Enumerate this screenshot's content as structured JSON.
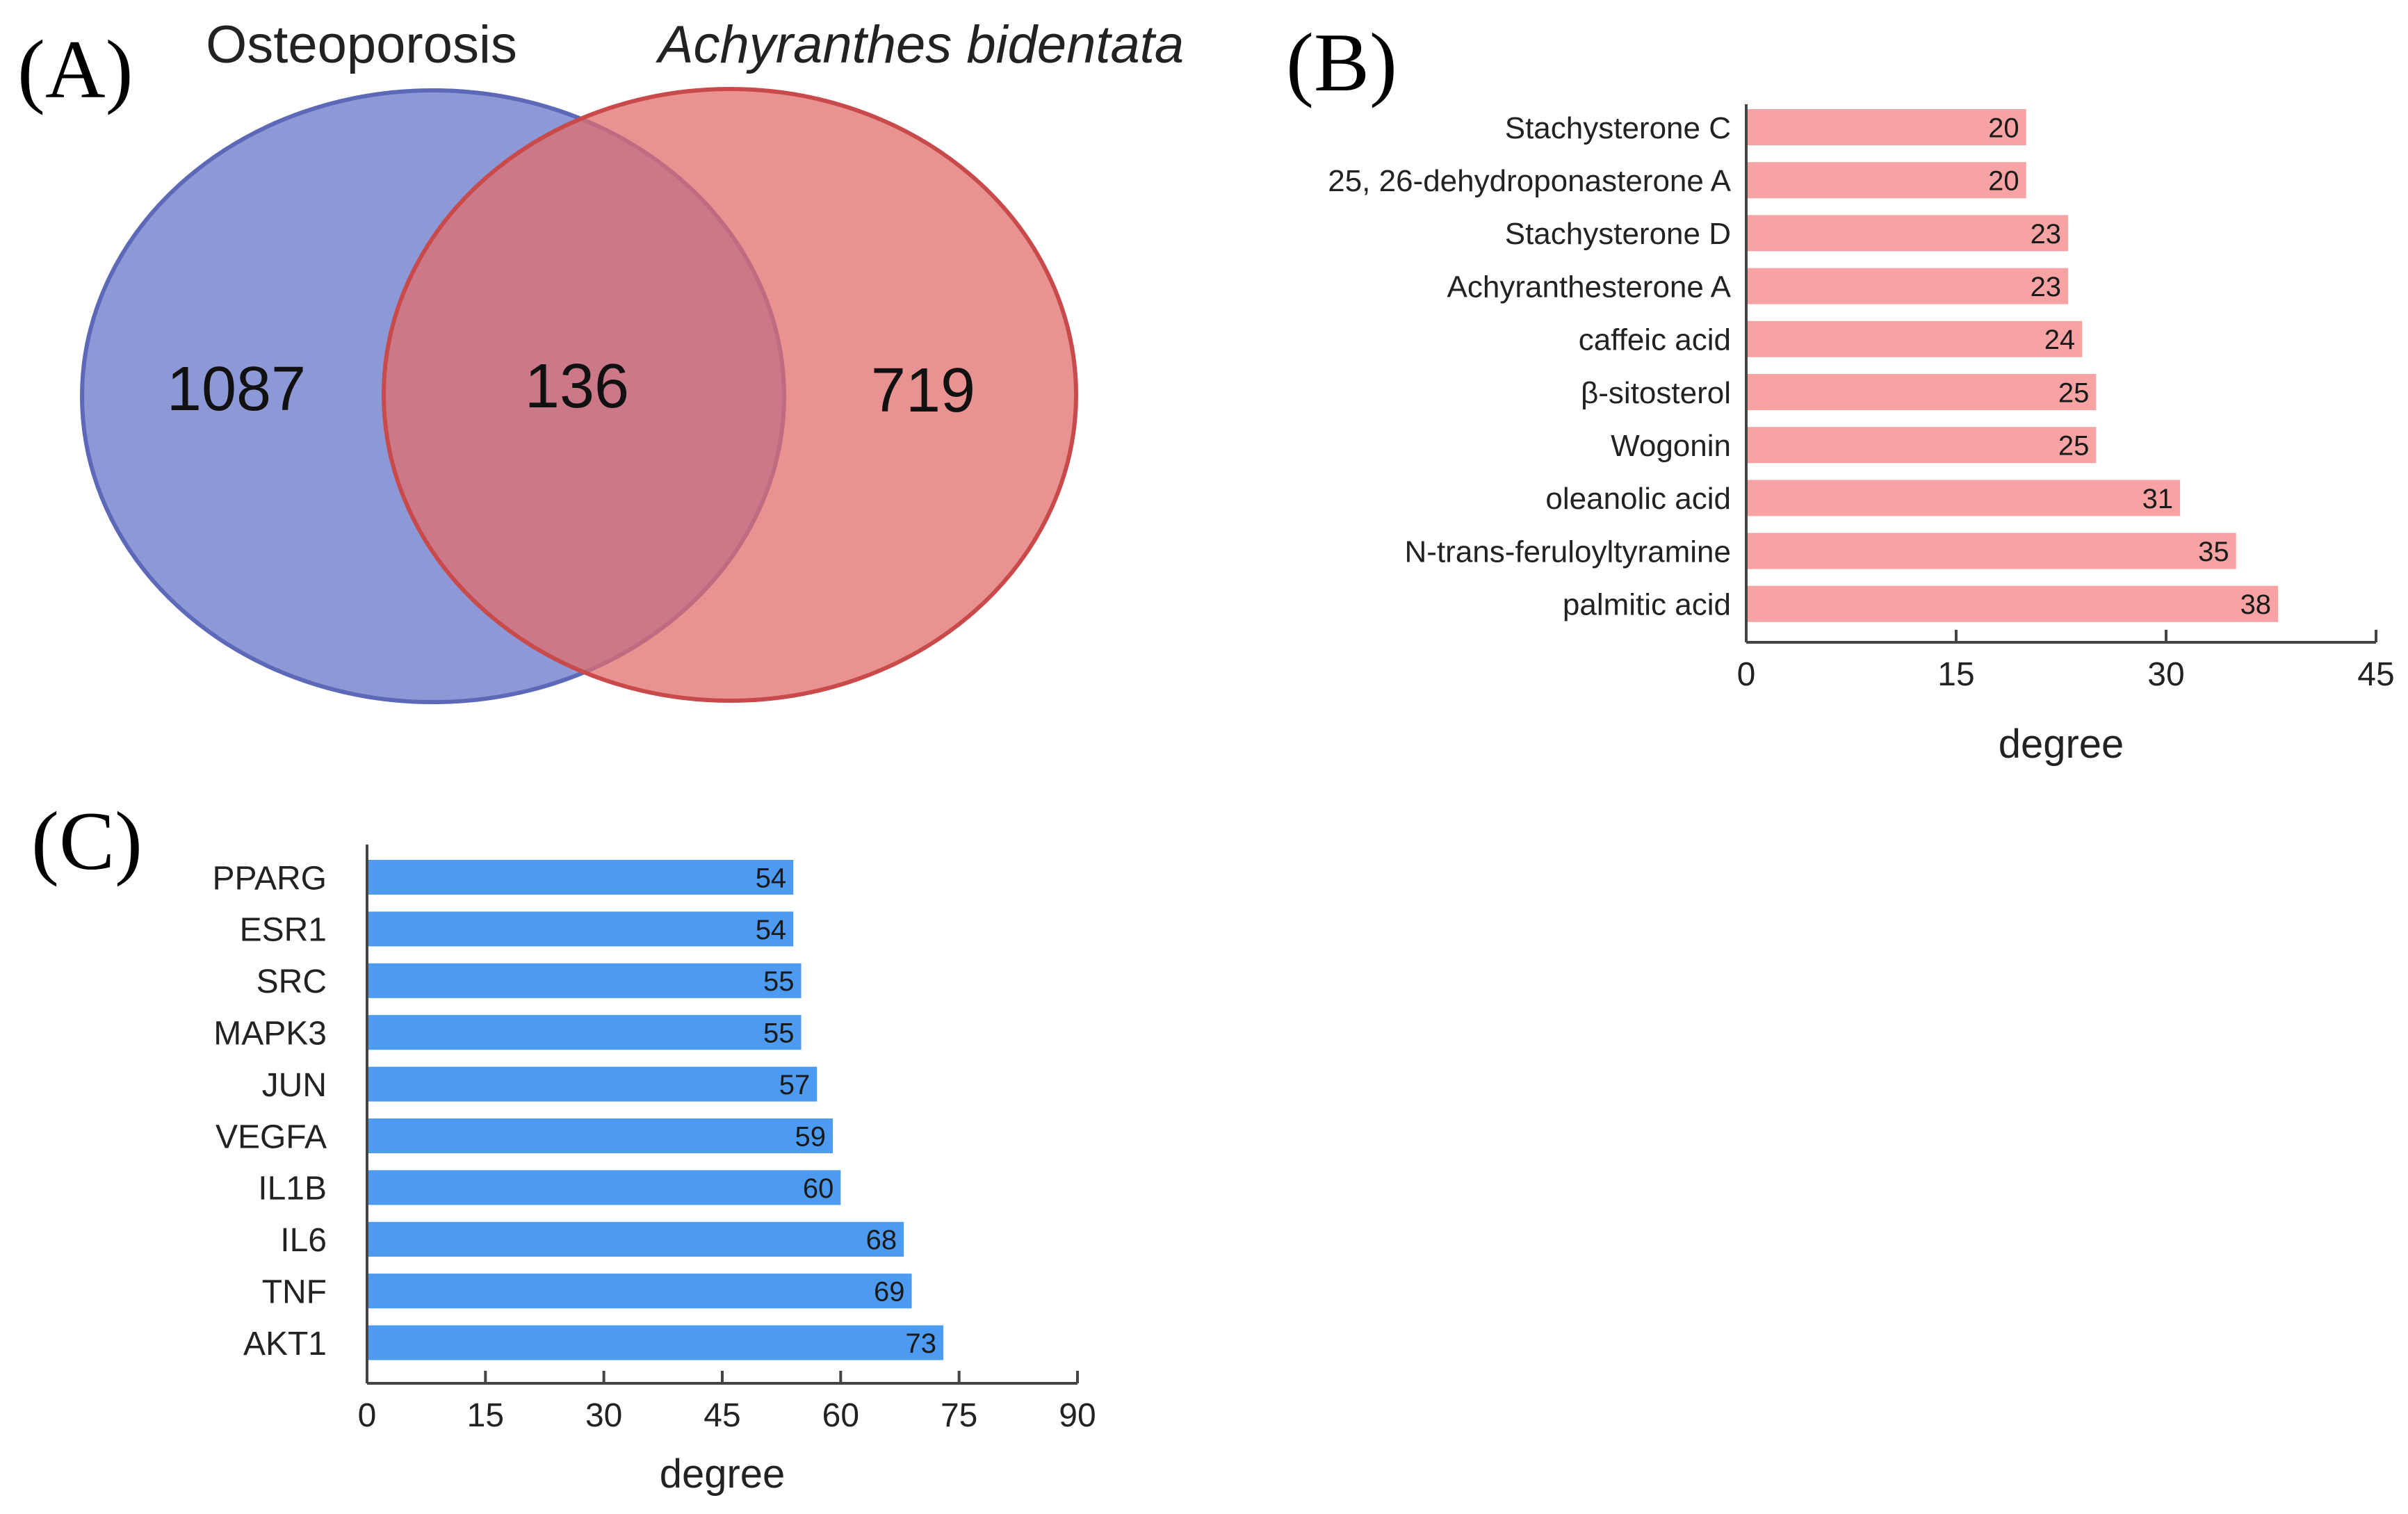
{
  "chart_data": [
    {
      "panel": "(A)",
      "type": "venn",
      "sets": [
        {
          "name": "Osteoporosis",
          "color": "#7080cc",
          "italic": false
        },
        {
          "name": "Achyranthes bidentata",
          "color": "#e06d6d",
          "italic": true
        }
      ],
      "counts": {
        "left_only": "1087",
        "overlap": "136",
        "right_only": "719"
      }
    },
    {
      "panel": "(B)",
      "type": "bar",
      "orientation": "horizontal",
      "bar_color": "#f7a3a3",
      "categories": [
        "Stachysterone C",
        "25, 26-dehydroponasterone A",
        "Stachysterone D",
        "Achyranthesterone A",
        "caffeic acid",
        "β-sitosterol",
        "Wogonin",
        "oleanolic acid",
        "N-trans-feruloyltyramine",
        "palmitic acid"
      ],
      "values": [
        20,
        20,
        23,
        23,
        24,
        25,
        25,
        31,
        35,
        38
      ],
      "xlabel": "degree",
      "ylabel": "",
      "xlim": [
        0,
        45
      ],
      "xticks": [
        0,
        15,
        30,
        45
      ]
    },
    {
      "panel": "(C)",
      "type": "bar",
      "orientation": "horizontal",
      "bar_color": "#4d9bf0",
      "categories": [
        "PPARG",
        "ESR1",
        "SRC",
        "MAPK3",
        "JUN",
        "VEGFA",
        "IL1B",
        "IL6",
        "TNF",
        "AKT1"
      ],
      "values": [
        54,
        54,
        55,
        55,
        57,
        59,
        60,
        68,
        69,
        73
      ],
      "xlabel": "degree",
      "ylabel": "",
      "xlim": [
        0,
        90
      ],
      "xticks": [
        0,
        15,
        30,
        45,
        60,
        75,
        90
      ]
    }
  ]
}
